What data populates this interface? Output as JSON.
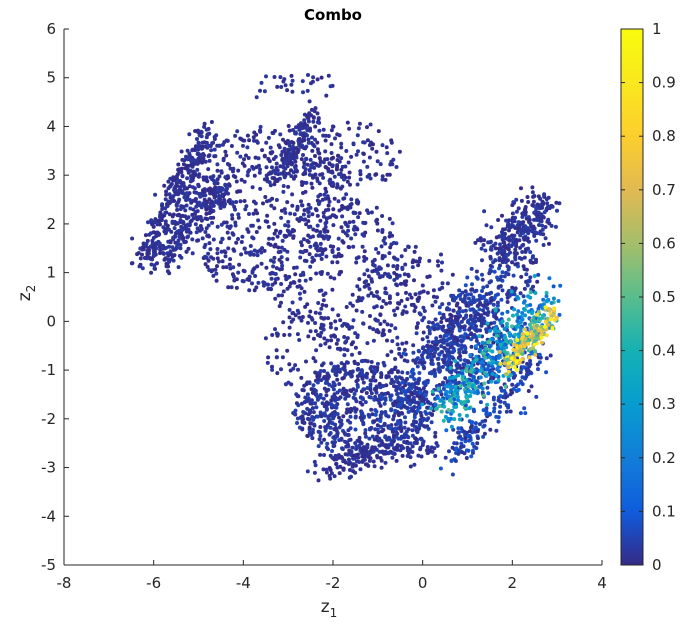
{
  "chart_data": {
    "type": "scatter",
    "title": "Combo",
    "xlabel": "z",
    "xlabel_subscript": "1",
    "ylabel": "z",
    "ylabel_subscript": "2",
    "xlim": [
      -8,
      4
    ],
    "ylim": [
      -5,
      6
    ],
    "xticks": [
      "-8",
      "-6",
      "-4",
      "-2",
      "0",
      "2",
      "4"
    ],
    "yticks": [
      "-5",
      "-4",
      "-3",
      "-2",
      "-1",
      "0",
      "1",
      "2",
      "3",
      "4",
      "5",
      "6"
    ],
    "grid": false,
    "colormap": "parula",
    "colorbar": {
      "clim": [
        0,
        1
      ],
      "ticks": [
        "0",
        "0.1",
        "0.2",
        "0.3",
        "0.4",
        "0.5",
        "0.6",
        "0.7",
        "0.8",
        "0.9",
        "1"
      ]
    },
    "marker_color_low": "#352a87",
    "point_clusters": [
      {
        "shape": "line",
        "from": [
          -6.3,
          1.2
        ],
        "to": [
          -4.8,
          3.9
        ],
        "width": 0.15,
        "n": 260,
        "c": [
          0,
          0.03
        ]
      },
      {
        "shape": "line",
        "from": [
          -5.9,
          1.2
        ],
        "to": [
          -4.3,
          2.9
        ],
        "width": 0.15,
        "n": 200,
        "c": [
          0,
          0.03
        ]
      },
      {
        "shape": "line",
        "from": [
          -3.2,
          3.0
        ],
        "to": [
          -2.4,
          4.3
        ],
        "width": 0.12,
        "n": 150,
        "c": [
          0,
          0.03
        ]
      },
      {
        "shape": "line",
        "from": [
          -3.6,
          4.9
        ],
        "to": [
          -2.0,
          4.9
        ],
        "width": 0.15,
        "n": 30,
        "c": [
          0,
          0.03
        ]
      },
      {
        "shape": "ellipse",
        "center": [
          -3.6,
          2.3
        ],
        "radius": [
          2.2,
          1.7
        ],
        "n": 650,
        "c": [
          0,
          0.03
        ]
      },
      {
        "shape": "ellipse",
        "center": [
          -1.6,
          3.4
        ],
        "radius": [
          1.1,
          0.7
        ],
        "n": 130,
        "c": [
          0,
          0.03
        ]
      },
      {
        "shape": "ellipse",
        "center": [
          -1.8,
          1.0
        ],
        "radius": [
          1.6,
          1.6
        ],
        "n": 280,
        "c": [
          0,
          0.03
        ]
      },
      {
        "shape": "ellipse",
        "center": [
          -0.3,
          0.4
        ],
        "radius": [
          1.1,
          1.3
        ],
        "n": 170,
        "c": [
          0,
          0.03
        ]
      },
      {
        "shape": "ellipse",
        "center": [
          -2.5,
          -0.6
        ],
        "radius": [
          1.1,
          0.8
        ],
        "n": 90,
        "c": [
          0,
          0.03
        ]
      },
      {
        "shape": "ellipse",
        "center": [
          -1.3,
          -1.8
        ],
        "radius": [
          1.6,
          1.0
        ],
        "n": 700,
        "c": [
          0,
          0.05
        ]
      },
      {
        "shape": "line",
        "from": [
          -2.3,
          -3.0
        ],
        "to": [
          0.3,
          -2.5
        ],
        "width": 0.15,
        "n": 160,
        "c": [
          0,
          0.03
        ]
      },
      {
        "shape": "line",
        "from": [
          -0.6,
          -1.8
        ],
        "to": [
          1.8,
          0.9
        ],
        "width": 0.3,
        "n": 380,
        "c": [
          0,
          0.08
        ]
      },
      {
        "shape": "line",
        "from": [
          0.7,
          -2.8
        ],
        "to": [
          2.6,
          -0.5
        ],
        "width": 0.2,
        "n": 220,
        "c": [
          0,
          0.1
        ]
      },
      {
        "shape": "ellipse",
        "center": [
          1.0,
          -0.4
        ],
        "radius": [
          0.9,
          1.0
        ],
        "n": 280,
        "c": [
          0,
          0.06
        ]
      },
      {
        "shape": "line",
        "from": [
          1.5,
          1.3
        ],
        "to": [
          2.8,
          2.4
        ],
        "width": 0.22,
        "n": 280,
        "c": [
          0,
          0.04
        ]
      },
      {
        "shape": "ellipse",
        "center": [
          2.1,
          1.0
        ],
        "radius": [
          0.5,
          0.6
        ],
        "n": 60,
        "c": [
          0,
          0.05
        ]
      },
      {
        "shape": "line",
        "from": [
          0.4,
          -1.9
        ],
        "to": [
          2.8,
          0.5
        ],
        "width": 0.22,
        "n": 420,
        "c": [
          0.05,
          0.5
        ]
      },
      {
        "shape": "line",
        "from": [
          1.9,
          -0.9
        ],
        "to": [
          2.9,
          0.2
        ],
        "width": 0.12,
        "n": 170,
        "c": [
          0.4,
          1.0
        ]
      }
    ]
  }
}
